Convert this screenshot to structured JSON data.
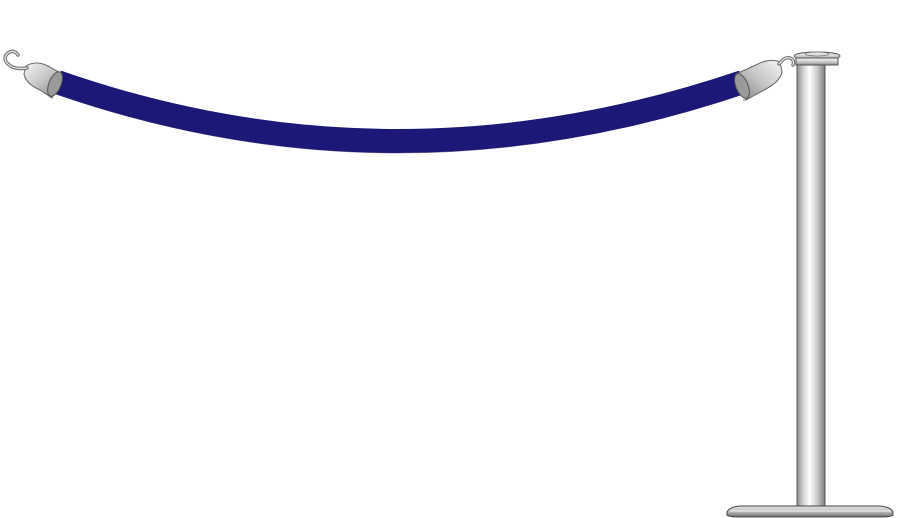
{
  "illustration": {
    "subject": "stanchion-with-velvet-rope",
    "colors": {
      "background": "#ffffff",
      "rope": "#1c1878",
      "rope_edge": "#100d55",
      "chrome_light": "#f4f4f4",
      "chrome_mid": "#c9c9c9",
      "chrome_dark": "#8a8a8a",
      "outline": "#555555"
    }
  }
}
